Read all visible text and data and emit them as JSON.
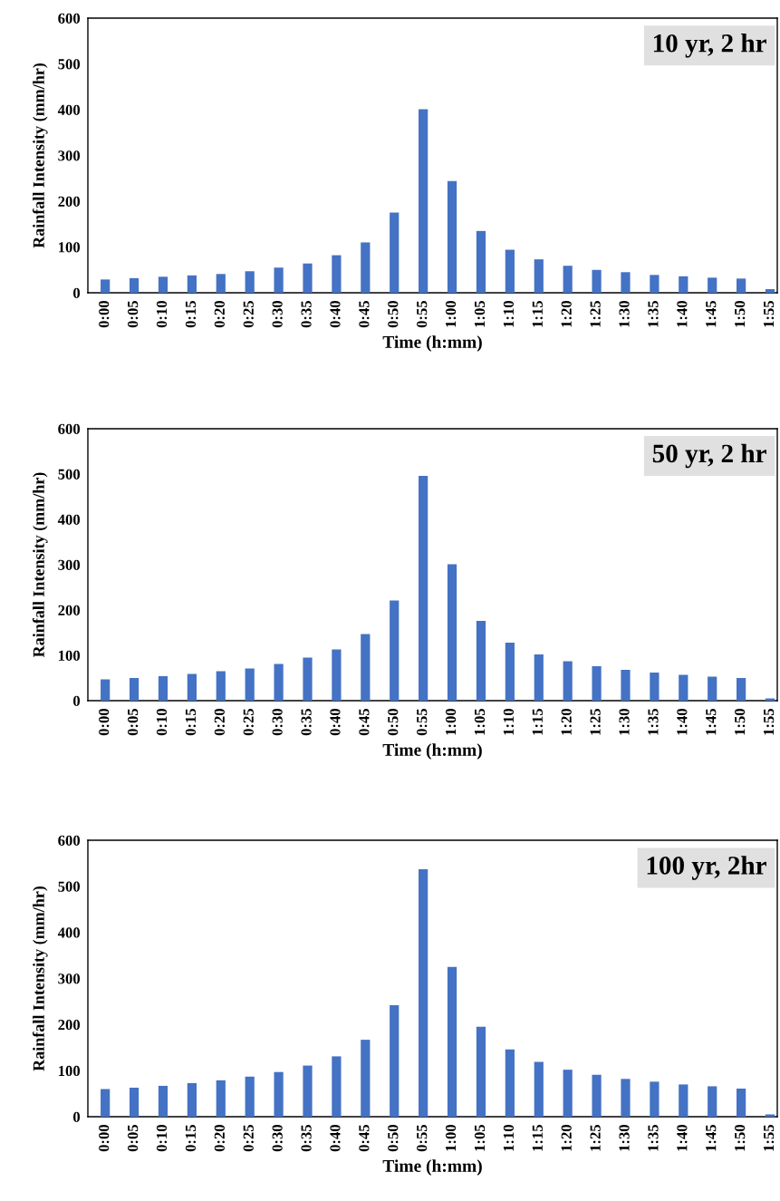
{
  "chart_data": [
    {
      "type": "bar",
      "title": "10 yr, 2 hr",
      "xlabel": "Time (h:mm)",
      "ylabel": "Rainfall Intensity (mm/hr)",
      "categories": [
        "0:00",
        "0:05",
        "0:10",
        "0:15",
        "0:20",
        "0:25",
        "0:30",
        "0:35",
        "0:40",
        "0:45",
        "0:50",
        "0:55",
        "1:00",
        "1:05",
        "1:10",
        "1:15",
        "1:20",
        "1:25",
        "1:30",
        "1:35",
        "1:40",
        "1:45",
        "1:50",
        "1:55"
      ],
      "color": "#4472c4",
      "values": [
        29,
        32,
        35,
        38,
        41,
        47,
        55,
        64,
        82,
        110,
        175,
        401,
        244,
        135,
        94,
        73,
        59,
        50,
        45,
        39,
        36,
        33,
        31,
        8
      ],
      "ylim": [
        0,
        600
      ],
      "yticks": [
        0,
        100,
        200,
        300,
        400,
        500,
        600
      ],
      "grid": false
    },
    {
      "type": "bar",
      "title": "50 yr, 2 hr",
      "xlabel": "Time (h:mm)",
      "ylabel": "Rainfall Intensity (mm/hr)",
      "categories": [
        "0:00",
        "0:05",
        "0:10",
        "0:15",
        "0:20",
        "0:25",
        "0:30",
        "0:35",
        "0:40",
        "0:45",
        "0:50",
        "0:55",
        "1:00",
        "1:05",
        "1:10",
        "1:15",
        "1:20",
        "1:25",
        "1:30",
        "1:35",
        "1:40",
        "1:45",
        "1:50",
        "1:55"
      ],
      "color": "#4472c4",
      "values": [
        47,
        50,
        54,
        59,
        65,
        71,
        81,
        95,
        113,
        147,
        221,
        496,
        301,
        176,
        128,
        102,
        87,
        76,
        68,
        62,
        57,
        53,
        50,
        5
      ],
      "ylim": [
        0,
        600
      ],
      "yticks": [
        0,
        100,
        200,
        300,
        400,
        500,
        600
      ],
      "grid": false
    },
    {
      "type": "bar",
      "title": "100 yr, 2hr",
      "xlabel": "Time (h:mm)",
      "ylabel": "Rainfall Intensity (mm/hr)",
      "categories": [
        "0:00",
        "0:05",
        "0:10",
        "0:15",
        "0:20",
        "0:25",
        "0:30",
        "0:35",
        "0:40",
        "0:45",
        "0:50",
        "0:55",
        "1:00",
        "1:05",
        "1:10",
        "1:15",
        "1:20",
        "1:25",
        "1:30",
        "1:35",
        "1:40",
        "1:45",
        "1:50",
        "1:55"
      ],
      "color": "#4472c4",
      "values": [
        60,
        63,
        67,
        73,
        79,
        87,
        97,
        111,
        131,
        167,
        242,
        537,
        325,
        195,
        146,
        119,
        102,
        91,
        82,
        76,
        70,
        66,
        61,
        5
      ],
      "ylim": [
        0,
        600
      ],
      "yticks": [
        0,
        100,
        200,
        300,
        400,
        500,
        600
      ],
      "grid": false
    }
  ]
}
